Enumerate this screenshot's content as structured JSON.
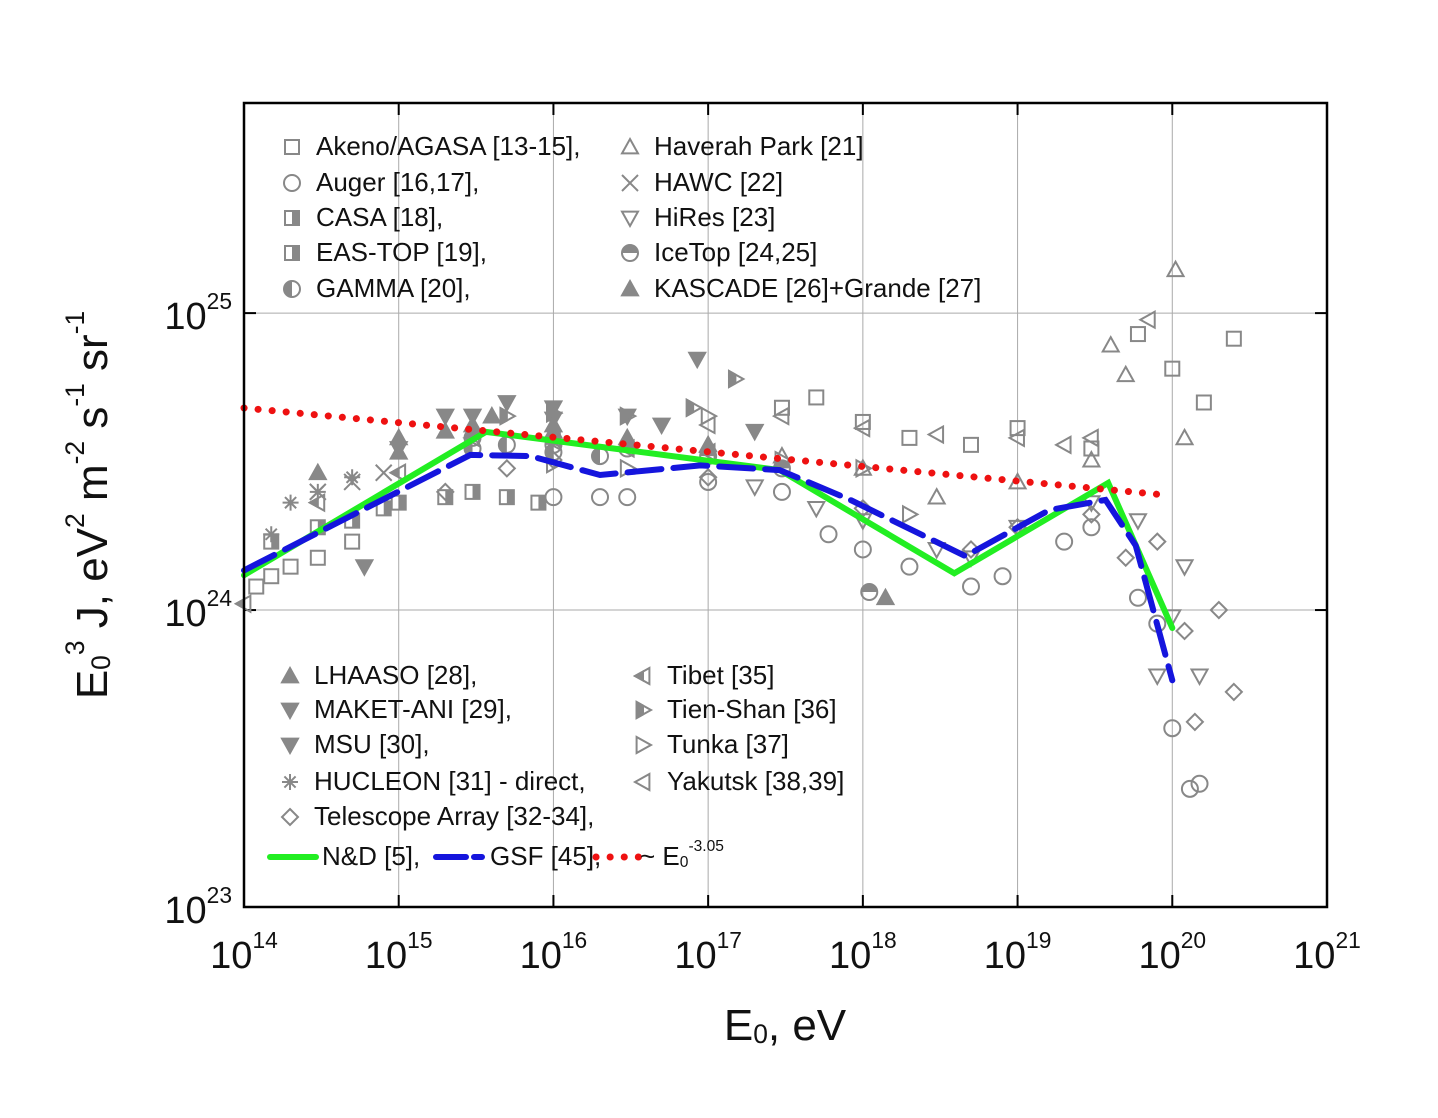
{
  "chart_data": {
    "type": "scatter",
    "xlabel": "E_{0}, eV",
    "ylabel": "E_{0}^{3} J, eV^{2} m^{-2} s^{-1} sr^{-1}",
    "xscale": "log",
    "yscale": "log",
    "grid": true,
    "xlim": [
      100000000000000.0,
      1e+21
    ],
    "ylim": [
      1e+23,
      5.1e+25
    ],
    "xticks": [
      {
        "value": 100000000000000.0,
        "label": "10^{14}"
      },
      {
        "value": 1000000000000000.0,
        "label": "10^{15}"
      },
      {
        "value": 1e+16,
        "label": "10^{16}"
      },
      {
        "value": 1e+17,
        "label": "10^{17}"
      },
      {
        "value": 1e+18,
        "label": "10^{18}"
      },
      {
        "value": 1e+19,
        "label": "10^{19}"
      },
      {
        "value": 1e+20,
        "label": "10^{20}"
      },
      {
        "value": 1e+21,
        "label": "10^{21}"
      }
    ],
    "yticks": [
      {
        "value": 1e+23,
        "label": "10^{23}"
      },
      {
        "value": 1e+24,
        "label": "10^{24}"
      },
      {
        "value": 1e+25,
        "label": "10^{25}"
      }
    ],
    "series": [
      {
        "name": "Akeno/AGASA [13-15],",
        "color": "#888888",
        "marker": "square",
        "x": [
          120000000000000.0,
          150000000000000.0,
          200000000000000.0,
          300000000000000.0,
          500000000000000.0,
          3e+17,
          5e+17,
          1e+18,
          2e+18,
          5e+18,
          1e+19,
          3e+19,
          6e+19,
          1e+20,
          1.6e+20,
          2.5e+20
        ],
        "values": [
          1.2e+24,
          1.3e+24,
          1.4e+24,
          1.5e+24,
          1.7e+24,
          4.8e+24,
          5.2e+24,
          4.3e+24,
          3.8e+24,
          3.6e+24,
          4.1e+24,
          3.5e+24,
          8.5e+24,
          6.5e+24,
          5e+24,
          8.2e+24
        ]
      },
      {
        "name": "Auger [16,17],",
        "color": "#888888",
        "marker": "circle",
        "x": [
          1e+16,
          2e+16,
          3e+16,
          1e+17,
          3e+17,
          6e+17,
          1e+18,
          2e+18,
          5e+18,
          8e+18,
          2e+19,
          3e+19,
          6e+19,
          8e+19,
          1e+20,
          1.3e+20,
          1.5e+20
        ],
        "values": [
          2.4e+24,
          2.4e+24,
          2.4e+24,
          2.7e+24,
          2.5e+24,
          1.8e+24,
          1.6e+24,
          1.4e+24,
          1.2e+24,
          1.3e+24,
          1.7e+24,
          1.9e+24,
          1.1e+24,
          9e+23,
          4e+23,
          2.5e+23,
          2.6e+23
        ]
      },
      {
        "name": "CASA [18],",
        "color": "#888888",
        "marker": "square-half",
        "x": [
          150000000000000.0,
          300000000000000.0,
          500000000000000.0,
          800000000000000.0,
          1000000000000000.0
        ],
        "values": [
          1.7e+24,
          1.9e+24,
          2e+24,
          2.2e+24,
          2.3e+24
        ]
      },
      {
        "name": "EAS-TOP [19],",
        "color": "#888888",
        "marker": "square-half",
        "x": [
          2000000000000000.0,
          3000000000000000.0,
          5000000000000000.0,
          8000000000000000.0
        ],
        "values": [
          2.4e+24,
          2.5e+24,
          2.4e+24,
          2.3e+24
        ]
      },
      {
        "name": "GAMMA [20],",
        "color": "#888888",
        "marker": "circle-half",
        "x": [
          3000000000000000.0,
          5000000000000000.0,
          1e+16,
          2e+16
        ],
        "values": [
          3.5e+24,
          3.6e+24,
          3.4e+24,
          3.3e+24
        ]
      },
      {
        "name": "Haverah Park [21]",
        "color": "#888888",
        "marker": "triangle-up",
        "x": [
          3e+17,
          1e+18,
          3e+18,
          1e+19,
          3e+19,
          4e+19,
          5e+19,
          1.05e+20,
          1.2e+20
        ],
        "values": [
          3.3e+24,
          3e+24,
          2.4e+24,
          2.7e+24,
          3.2e+24,
          7.8e+24,
          6.2e+24,
          1.4e+25,
          3.8e+24
        ]
      },
      {
        "name": "HAWC [22]",
        "color": "#888888",
        "marker": "cross",
        "x": [
          300000000000000.0,
          500000000000000.0,
          800000000000000.0
        ],
        "values": [
          2.5e+24,
          2.7e+24,
          2.9e+24
        ]
      },
      {
        "name": "HiRes [23]",
        "color": "#888888",
        "marker": "triangle-down",
        "x": [
          2e+17,
          5e+17,
          1e+18,
          3e+18,
          5e+18,
          1e+19,
          3e+19,
          6e+19,
          8e+19,
          1e+20,
          1.2e+20,
          1.5e+20
        ],
        "values": [
          2.6e+24,
          2.2e+24,
          2e+24,
          1.6e+24,
          1.5e+24,
          1.9e+24,
          2.3e+24,
          2e+24,
          6e+23,
          9.5e+23,
          1.4e+24,
          6e+23
        ]
      },
      {
        "name": "IceTop [24,25]",
        "color": "#888888",
        "marker": "circle-half-top",
        "x": [
          3000000000000000.0,
          1e+16,
          3e+16,
          1e+17,
          3e+17,
          1.1e+18
        ],
        "values": [
          3.8e+24,
          3.6e+24,
          3.5e+24,
          3.3e+24,
          3e+24,
          1.15e+24
        ]
      },
      {
        "name": "KASCADE [26]+Grande [27]",
        "color": "#888888",
        "marker": "triangle-up-filled",
        "x": [
          1000000000000000.0,
          3000000000000000.0,
          1e+16,
          3e+16,
          1e+17,
          1.4e+18
        ],
        "values": [
          3.8e+24,
          4.2e+24,
          4e+24,
          3.8e+24,
          3.6e+24,
          1.1e+24
        ]
      },
      {
        "name": "LHAASO [28],",
        "color": "#888888",
        "marker": "triangle-up-filled",
        "x": [
          300000000000000.0,
          1000000000000000.0,
          2000000000000000.0,
          4000000000000000.0,
          1e+16
        ],
        "values": [
          2.9e+24,
          3.4e+24,
          4e+24,
          4.5e+24,
          4.2e+24
        ]
      },
      {
        "name": "MAKET-ANI [29],",
        "color": "#888888",
        "marker": "triangle-down-filled",
        "x": [
          2000000000000000.0,
          5000000000000000.0,
          1e+16,
          3e+16,
          8.5e+16
        ],
        "values": [
          4.5e+24,
          5e+24,
          4.8e+24,
          4.5e+24,
          7e+24
        ]
      },
      {
        "name": "MSU [30],",
        "color": "#888888",
        "marker": "triangle-down-filled",
        "x": [
          600000000000000.0,
          1000000000000000.0,
          3000000000000000.0,
          1e+16,
          5e+16,
          2e+17
        ],
        "values": [
          1.4e+24,
          3.5e+24,
          4.5e+24,
          4.4e+24,
          4.2e+24,
          4e+24
        ]
      },
      {
        "name": "HUCLEON [31] - direct,",
        "color": "#888888",
        "marker": "star",
        "x": [
          150000000000000.0,
          200000000000000.0,
          300000000000000.0,
          500000000000000.0
        ],
        "values": [
          1.8e+24,
          2.3e+24,
          2.5e+24,
          2.8e+24
        ]
      },
      {
        "name": "Telescope Array [32-34],",
        "color": "#888888",
        "marker": "diamond",
        "x": [
          2000000000000000.0,
          5000000000000000.0,
          1e+16,
          1e+17,
          1e+18,
          5e+18,
          1e+19,
          3e+19,
          5e+19,
          8e+19,
          1.2e+20,
          1.4e+20,
          2e+20,
          2.5e+20
        ],
        "values": [
          2.5e+24,
          3e+24,
          3.2e+24,
          2.8e+24,
          2.2e+24,
          1.6e+24,
          1.9e+24,
          2.1e+24,
          1.5e+24,
          1.7e+24,
          8.5e+23,
          4.2e+23,
          1e+24,
          5.3e+23
        ]
      },
      {
        "name": "Tibet [35]",
        "color": "#888888",
        "marker": "triangle-left-filled",
        "x": [
          100000000000000.0,
          300000000000000.0,
          1000000000000000.0,
          3000000000000000.0,
          1e+16,
          3e+16,
          1e+17
        ],
        "values": [
          1.05e+24,
          2.3e+24,
          2.9e+24,
          3.8e+24,
          3.7e+24,
          3.5e+24,
          3.4e+24
        ]
      },
      {
        "name": "Tien-Shan [36]",
        "color": "#888888",
        "marker": "triangle-right-filled",
        "x": [
          5000000000000000.0,
          1e+16,
          3e+16,
          8e+16,
          1.5e+17
        ],
        "values": [
          4.5e+24,
          4.6e+24,
          4.5e+24,
          4.8e+24,
          6e+24
        ]
      },
      {
        "name": "Tunka [37]",
        "color": "#888888",
        "marker": "triangle-right",
        "x": [
          1e+16,
          3e+16,
          1e+17,
          3e+17,
          1e+18,
          2e+18
        ],
        "values": [
          3.1e+24,
          3e+24,
          4.5e+24,
          3.2e+24,
          3e+24,
          2.1e+24
        ]
      },
      {
        "name": "Yakutsk [38,39]",
        "color": "#888888",
        "marker": "triangle-left",
        "x": [
          1e+17,
          3e+17,
          1e+18,
          3e+18,
          1e+19,
          2e+19,
          3e+19,
          7e+19
        ],
        "values": [
          4.2e+24,
          4.5e+24,
          4.1e+24,
          3.9e+24,
          3.8e+24,
          3.6e+24,
          3.8e+24,
          9.5e+24
        ]
      }
    ],
    "lines": [
      {
        "name": "N&D [5],",
        "color": "#22ee22",
        "style": "solid",
        "x": [
          100000000000000.0,
          3660000000000000.0,
          2.9e+17,
          3.9e+18,
          3.85e+19,
          1e+20
        ],
        "values": [
          1.31e+24,
          3.98e+24,
          2.96e+24,
          1.33e+24,
          2.68e+24,
          8.7e+23
        ]
      },
      {
        "name": "GSF [45],",
        "color": "#1515dd",
        "style": "dash",
        "x": [
          100000000000000.0,
          2900000000000000.0,
          7100000000000000.0,
          2e+16,
          8.9e+16,
          2.9e+17,
          8.3e+17,
          4.6e+18,
          1.6e+19,
          3.7e+19,
          5.8e+19,
          1e+20
        ],
        "values": [
          1.36e+24,
          3.33e+24,
          3.3e+24,
          2.85e+24,
          3.07e+24,
          2.96e+24,
          2.35e+24,
          1.52e+24,
          2.17e+24,
          2.35e+24,
          1.65e+24,
          5.8e+23
        ]
      },
      {
        "name": "~ E_{0}^{-3.05}",
        "color": "#ee1111",
        "style": "dot",
        "x": [
          100000000000000.0,
          9e+19
        ],
        "values": [
          4.79e+24,
          2.44e+24
        ]
      }
    ]
  }
}
